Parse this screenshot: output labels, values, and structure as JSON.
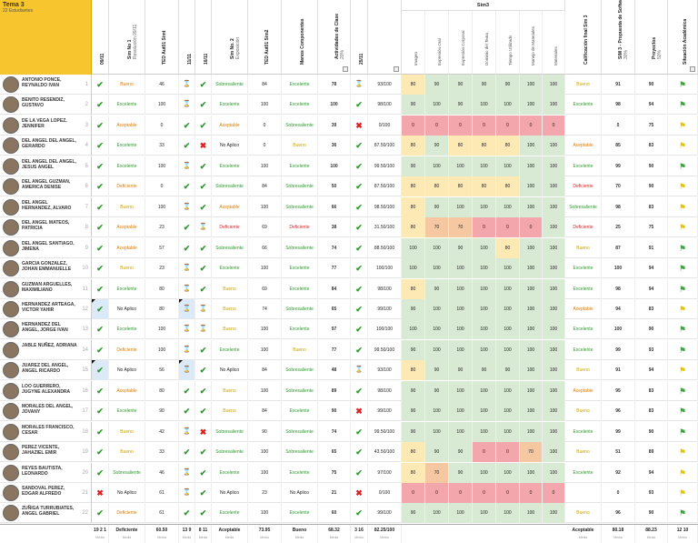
{
  "topic": {
    "title": "Tema 3",
    "count": "22 Estudiantes"
  },
  "headers": [
    {
      "k": "c1",
      "t": "09/11",
      "s": ""
    },
    {
      "k": "c2",
      "t": "Sim No 1",
      "s": "Resolución 09/11"
    },
    {
      "k": "c3",
      "t": "TED Aut01 Simt",
      "s": ""
    },
    {
      "k": "c4",
      "t": "11/11",
      "s": ""
    },
    {
      "k": "c5",
      "t": "16/11",
      "s": ""
    },
    {
      "k": "c6",
      "t": "Sim No. 2",
      "s": "Exposición"
    },
    {
      "k": "c7",
      "t": "TED Aut01 Sim2",
      "s": ""
    },
    {
      "k": "c8",
      "t": "Manos Componentes",
      "s": ""
    },
    {
      "k": "c9",
      "t": "Actividades de Clase",
      "s": "20%"
    },
    {
      "k": "c10",
      "t": "25/11",
      "s": ""
    },
    {
      "k": "c11",
      "t": "",
      "s": ""
    },
    {
      "k": "c12",
      "t": "Calificación final Sim 3",
      "s": ""
    },
    {
      "k": "c13",
      "t": "SIM 3 - Propuesta de Software",
      "s": "30%"
    },
    {
      "k": "c14",
      "t": "Proyectos",
      "s": "50%"
    },
    {
      "k": "c15",
      "t": "Situación Académica",
      "s": ""
    }
  ],
  "sim3": {
    "title": "Sim3",
    "cols": [
      "Imagen",
      "Expresión Oral",
      "Expresión Corporal",
      "Dominio del Tema",
      "Tiempo Utilizado",
      "Manejo de Materiales",
      "Materiales"
    ]
  },
  "rows": [
    {
      "n": "ANTONIO PONCE, REYNALDO IVAN",
      "i": "1",
      "a": "c",
      "b": "Bueno",
      "bc": "o",
      "c": "46",
      "d": "h",
      "e": "c",
      "f": "Sobresaliente",
      "fc": "g",
      "g": "84",
      "h": "Excelente",
      "hc": "g",
      "act": "78",
      "j": "h",
      "k": "93/100",
      "s": [
        "80",
        "90",
        "90",
        "90",
        "90",
        "100",
        "100"
      ],
      "sc": [
        "y",
        "g",
        "g",
        "g",
        "g",
        "g",
        "g"
      ],
      "cf": "Bueno",
      "cfc": "y",
      "sim": "91",
      "p": "90",
      "fl": "g"
    },
    {
      "n": "BENITO RESENDIZ, GUSTAVO",
      "i": "2",
      "a": "c",
      "b": "Excelente",
      "bc": "g",
      "c": "100",
      "d": "h",
      "e": "c",
      "f": "Excelente",
      "fc": "g",
      "g": "100",
      "h": "Excelente",
      "hc": "g",
      "act": "100",
      "j": "c",
      "k": "98/100",
      "s": [
        "90",
        "100",
        "90",
        "100",
        "100",
        "100",
        "100"
      ],
      "sc": [
        "g",
        "g",
        "g",
        "g",
        "g",
        "g",
        "g"
      ],
      "cf": "Excelente",
      "cfc": "g",
      "sim": "98",
      "p": "94",
      "fl": "g"
    },
    {
      "n": "DE LA VEGA LOPEZ, JENNIFER",
      "i": "3",
      "a": "c",
      "b": "Aceptable",
      "bc": "o",
      "c": "0",
      "d": "c",
      "e": "c",
      "f": "Aceptable",
      "fc": "o",
      "g": "0",
      "h": "Sobresaliente",
      "hc": "g",
      "act": "39",
      "j": "x",
      "k": "0/100",
      "s": [
        "0",
        "0",
        "0",
        "0",
        "0",
        "0",
        "0"
      ],
      "sc": [
        "r",
        "r",
        "r",
        "r",
        "r",
        "r",
        "r"
      ],
      "cf": "",
      "cfc": "",
      "sim": "0",
      "p": "75",
      "fl": "y"
    },
    {
      "n": "DEL ANGEL DEL ANGEL, GERARDO",
      "i": "4",
      "a": "c",
      "b": "Excelente",
      "bc": "g",
      "c": "33",
      "d": "c",
      "e": "x",
      "f": "No Aplico",
      "fc": "",
      "g": "0",
      "h": "Bueno",
      "hc": "y",
      "act": "36",
      "j": "c",
      "k": "87.50/100",
      "s": [
        "80",
        "90",
        "80",
        "80",
        "80",
        "100",
        "100"
      ],
      "sc": [
        "y",
        "g",
        "y",
        "y",
        "y",
        "g",
        "g"
      ],
      "cf": "Aceptable",
      "cfc": "o",
      "sim": "85",
      "p": "83",
      "fl": "y"
    },
    {
      "n": "DEL ANGEL DEL ANGEL, JESUS ANGEL",
      "i": "5",
      "a": "c",
      "b": "Excelente",
      "bc": "g",
      "c": "100",
      "d": "h",
      "e": "c",
      "f": "Excelente",
      "fc": "g",
      "g": "100",
      "h": "Excelente",
      "hc": "g",
      "act": "100",
      "j": "c",
      "k": "99.50/100",
      "s": [
        "90",
        "100",
        "100",
        "100",
        "100",
        "100",
        "100"
      ],
      "sc": [
        "g",
        "g",
        "g",
        "g",
        "g",
        "g",
        "g"
      ],
      "cf": "Excelente",
      "cfc": "g",
      "sim": "99",
      "p": "90",
      "fl": "g"
    },
    {
      "n": "DEL ANGEL GUZMAN, AMERICA DENISE",
      "i": "6",
      "a": "c",
      "b": "Deficiente",
      "bc": "o",
      "c": "0",
      "d": "c",
      "e": "c",
      "f": "Sobresaliente",
      "fc": "g",
      "g": "84",
      "h": "Sobresaliente",
      "hc": "g",
      "act": "50",
      "j": "c",
      "k": "87.50/100",
      "s": [
        "80",
        "80",
        "80",
        "80",
        "80",
        "100",
        "100"
      ],
      "sc": [
        "y",
        "y",
        "y",
        "y",
        "y",
        "g",
        "g"
      ],
      "cf": "Deficiente",
      "cfc": "r",
      "sim": "70",
      "p": "90",
      "fl": "y"
    },
    {
      "n": "DEL ANGEL HERNANDEZ, ALVARO",
      "i": "7",
      "a": "c",
      "b": "Bueno",
      "bc": "y",
      "c": "100",
      "d": "h",
      "e": "c",
      "f": "Aceptable",
      "fc": "o",
      "g": "100",
      "h": "Sobresaliente",
      "hc": "g",
      "act": "66",
      "j": "c",
      "k": "98.50/100",
      "s": [
        "80",
        "90",
        "100",
        "100",
        "100",
        "100",
        "100"
      ],
      "sc": [
        "y",
        "g",
        "g",
        "g",
        "g",
        "g",
        "g"
      ],
      "cf": "Sobresaliente",
      "cfc": "g",
      "sim": "98",
      "p": "83",
      "fl": "y"
    },
    {
      "n": "DEL ANGEL MATEOS, PATRICIA",
      "i": "8",
      "a": "c",
      "b": "Aceptable",
      "bc": "o",
      "c": "23",
      "d": "c",
      "e": "h",
      "f": "Deficiente",
      "fc": "r",
      "g": "69",
      "h": "Deficiente",
      "hc": "r",
      "act": "38",
      "j": "c",
      "k": "31.50/100",
      "s": [
        "80",
        "70",
        "70",
        "0",
        "0",
        "0",
        "100"
      ],
      "sc": [
        "y",
        "o",
        "o",
        "r",
        "r",
        "r",
        "g"
      ],
      "cf": "Deficiente",
      "cfc": "r",
      "sim": "25",
      "p": "75",
      "fl": "y"
    },
    {
      "n": "DEL ANGEL SANTIAGO, JIMENA",
      "i": "9",
      "a": "c",
      "b": "Aceptable",
      "bc": "o",
      "c": "57",
      "d": "c",
      "e": "c",
      "f": "Sobresaliente",
      "fc": "g",
      "g": "66",
      "h": "Sobresaliente",
      "hc": "g",
      "act": "74",
      "j": "c",
      "k": "88.50/100",
      "s": [
        "100",
        "100",
        "90",
        "100",
        "80",
        "100",
        "100"
      ],
      "sc": [
        "g",
        "g",
        "g",
        "g",
        "y",
        "g",
        "g"
      ],
      "cf": "Bueno",
      "cfc": "y",
      "sim": "87",
      "p": "91",
      "fl": "g"
    },
    {
      "n": "GARCIA GONZALEZ, JOHAN EMMANUELLE",
      "i": "10",
      "a": "c",
      "b": "Bueno",
      "bc": "y",
      "c": "23",
      "d": "h",
      "e": "c",
      "f": "Excelente",
      "fc": "g",
      "g": "100",
      "h": "Excelente",
      "hc": "g",
      "act": "77",
      "j": "c",
      "k": "100/100",
      "s": [
        "100",
        "100",
        "100",
        "100",
        "100",
        "100",
        "100"
      ],
      "sc": [
        "g",
        "g",
        "g",
        "g",
        "g",
        "g",
        "g"
      ],
      "cf": "Excelente",
      "cfc": "g",
      "sim": "100",
      "p": "94",
      "fl": "g"
    },
    {
      "n": "GUZMAN ARGUELLES, MAXIMILIANO",
      "i": "11",
      "a": "c",
      "b": "Excelente",
      "bc": "g",
      "c": "80",
      "d": "h",
      "e": "c",
      "f": "Bueno",
      "fc": "y",
      "g": "69",
      "h": "Excelente",
      "hc": "g",
      "act": "84",
      "j": "c",
      "k": "98/100",
      "s": [
        "80",
        "90",
        "100",
        "100",
        "100",
        "100",
        "100"
      ],
      "sc": [
        "y",
        "g",
        "g",
        "g",
        "g",
        "g",
        "g"
      ],
      "cf": "Excelente",
      "cfc": "g",
      "sim": "98",
      "p": "94",
      "fl": "g"
    },
    {
      "n": "HERNANDEZ ARTEAGA, VICTOR YAHIR",
      "i": "12",
      "a": "c",
      "b": "No Aplico",
      "bc": "",
      "c": "80",
      "d": "h",
      "e": "h",
      "f": "Bueno",
      "fc": "y",
      "g": "74",
      "h": "Sobresaliente",
      "hc": "g",
      "act": "65",
      "j": "c",
      "k": "99/100",
      "s": [
        "90",
        "100",
        "100",
        "100",
        "100",
        "100",
        "100"
      ],
      "sc": [
        "g",
        "g",
        "g",
        "g",
        "g",
        "g",
        "g"
      ],
      "cf": "Aceptable",
      "cfc": "o",
      "sim": "94",
      "p": "83",
      "fl": "y",
      "blue": true
    },
    {
      "n": "HERNANDEZ DEL ANGEL, JORGE IVAN",
      "i": "13",
      "a": "c",
      "b": "Excelente",
      "bc": "g",
      "c": "100",
      "d": "h",
      "e": "h",
      "f": "Bueno",
      "fc": "y",
      "g": "100",
      "h": "Excelente",
      "hc": "g",
      "act": "97",
      "j": "c",
      "k": "100/100",
      "s": [
        "100",
        "100",
        "100",
        "100",
        "100",
        "100",
        "100"
      ],
      "sc": [
        "g",
        "g",
        "g",
        "g",
        "g",
        "g",
        "g"
      ],
      "cf": "Excelente",
      "cfc": "g",
      "sim": "100",
      "p": "90",
      "fl": "g"
    },
    {
      "n": "JABLE NUÑEZ, ADRIANA",
      "i": "14",
      "a": "c",
      "b": "Deficiente",
      "bc": "o",
      "c": "100",
      "d": "h",
      "e": "c",
      "f": "Excelente",
      "fc": "g",
      "g": "100",
      "h": "Bueno",
      "hc": "y",
      "act": "77",
      "j": "c",
      "k": "99.50/100",
      "s": [
        "90",
        "100",
        "100",
        "100",
        "100",
        "100",
        "100"
      ],
      "sc": [
        "g",
        "g",
        "g",
        "g",
        "g",
        "g",
        "g"
      ],
      "cf": "Excelente",
      "cfc": "g",
      "sim": "99",
      "p": "93",
      "fl": "g"
    },
    {
      "n": "JUAREZ DEL ANGEL, ANGEL RICARDO",
      "i": "15",
      "a": "c",
      "b": "No Aplico",
      "bc": "",
      "c": "56",
      "d": "h",
      "e": "c",
      "f": "No Aplico",
      "fc": "",
      "g": "84",
      "h": "Sobresaliente",
      "hc": "g",
      "act": "48",
      "j": "h",
      "k": "93/100",
      "s": [
        "80",
        "90",
        "90",
        "90",
        "90",
        "100",
        "100"
      ],
      "sc": [
        "y",
        "g",
        "g",
        "g",
        "g",
        "g",
        "g"
      ],
      "cf": "Bueno",
      "cfc": "y",
      "sim": "91",
      "p": "94",
      "fl": "y",
      "blue": true
    },
    {
      "n": "LOO GUERRERO, JUGYNE ALEXANDRA",
      "i": "16",
      "a": "c",
      "b": "Aceptable",
      "bc": "o",
      "c": "80",
      "d": "c",
      "e": "c",
      "f": "Bueno",
      "fc": "y",
      "g": "100",
      "h": "Sobresaliente",
      "hc": "g",
      "act": "89",
      "j": "c",
      "k": "98/100",
      "s": [
        "90",
        "90",
        "100",
        "100",
        "100",
        "100",
        "100"
      ],
      "sc": [
        "g",
        "g",
        "g",
        "g",
        "g",
        "g",
        "g"
      ],
      "cf": "Aceptable",
      "cfc": "o",
      "sim": "95",
      "p": "83",
      "fl": "g"
    },
    {
      "n": "MORALES DEL ANGEL, JOVANY",
      "i": "17",
      "a": "c",
      "b": "Excelente",
      "bc": "g",
      "c": "90",
      "d": "c",
      "e": "c",
      "f": "Bueno",
      "fc": "y",
      "g": "84",
      "h": "Excelente",
      "hc": "g",
      "act": "90",
      "j": "x",
      "k": "99/100",
      "s": [
        "90",
        "100",
        "100",
        "100",
        "100",
        "100",
        "100"
      ],
      "sc": [
        "g",
        "g",
        "g",
        "g",
        "g",
        "g",
        "g"
      ],
      "cf": "Bueno",
      "cfc": "y",
      "sim": "96",
      "p": "83",
      "fl": "g"
    },
    {
      "n": "MORALES FRANCISCO, CESAR",
      "i": "18",
      "a": "c",
      "b": "Bueno",
      "bc": "y",
      "c": "42",
      "d": "h",
      "e": "x",
      "f": "Sobresaliente",
      "fc": "g",
      "g": "90",
      "h": "Sobresaliente",
      "hc": "g",
      "act": "74",
      "j": "c",
      "k": "99.50/100",
      "s": [
        "90",
        "100",
        "100",
        "100",
        "100",
        "100",
        "100"
      ],
      "sc": [
        "g",
        "g",
        "g",
        "g",
        "g",
        "g",
        "g"
      ],
      "cf": "Excelente",
      "cfc": "g",
      "sim": "99",
      "p": "90",
      "fl": "g"
    },
    {
      "n": "PEREZ VICENTE, JAHAZIEL EMIR",
      "i": "19",
      "a": "c",
      "b": "Bueno",
      "bc": "y",
      "c": "33",
      "d": "c",
      "e": "c",
      "f": "Sobresaliente",
      "fc": "g",
      "g": "100",
      "h": "Sobresaliente",
      "hc": "g",
      "act": "65",
      "j": "c",
      "k": "43.50/100",
      "s": [
        "80",
        "90",
        "90",
        "0",
        "0",
        "70",
        "100"
      ],
      "sc": [
        "y",
        "g",
        "g",
        "r",
        "r",
        "o",
        "g"
      ],
      "cf": "Bueno",
      "cfc": "y",
      "sim": "51",
      "p": "89",
      "fl": "y"
    },
    {
      "n": "REYES BAUTISTA, LEONARDO",
      "i": "20",
      "a": "c",
      "b": "Sobresaliente",
      "bc": "g",
      "c": "46",
      "d": "h",
      "e": "c",
      "f": "Excelente",
      "fc": "g",
      "g": "100",
      "h": "Excelente",
      "hc": "g",
      "act": "75",
      "j": "c",
      "k": "97/100",
      "s": [
        "80",
        "70",
        "90",
        "100",
        "100",
        "100",
        "100"
      ],
      "sc": [
        "y",
        "o",
        "g",
        "g",
        "g",
        "g",
        "g"
      ],
      "cf": "Excelente",
      "cfc": "g",
      "sim": "92",
      "p": "94",
      "fl": "y"
    },
    {
      "n": "SANDOVAL PEREZ, EDGAR ALFREDO",
      "i": "21",
      "a": "x",
      "b": "No Aplico",
      "bc": "",
      "c": "61",
      "d": "h",
      "e": "c",
      "f": "No Aplico",
      "fc": "",
      "g": "23",
      "h": "No Aplico",
      "hc": "",
      "act": "21",
      "j": "x",
      "k": "0/100",
      "s": [
        "0",
        "0",
        "0",
        "0",
        "0",
        "0",
        "0"
      ],
      "sc": [
        "r",
        "r",
        "r",
        "r",
        "r",
        "r",
        "r"
      ],
      "cf": "",
      "cfc": "",
      "sim": "0",
      "p": "93",
      "fl": "y"
    },
    {
      "n": "ZUÑIGA TURRUBIATES, ANGEL GABRIEL",
      "i": "22",
      "a": "c",
      "b": "Deficiente",
      "bc": "o",
      "c": "61",
      "d": "c",
      "e": "c",
      "f": "Excelente",
      "fc": "g",
      "g": "100",
      "h": "Excelente",
      "hc": "g",
      "act": "60",
      "j": "c",
      "k": "99/100",
      "s": [
        "90",
        "100",
        "100",
        "100",
        "100",
        "100",
        "100"
      ],
      "sc": [
        "g",
        "g",
        "g",
        "g",
        "g",
        "g",
        "g"
      ],
      "cf": "Bueno",
      "cfc": "y",
      "sim": "96",
      "p": "90",
      "fl": "g"
    }
  ],
  "footer": {
    "c1a": "19",
    "c1b": "2",
    "c1c": "1",
    "c2": "Deficiente",
    "c3": "60.50",
    "c4a": "13",
    "c4b": "9",
    "c5a": "8",
    "c5b": "11",
    "c6": "Aceptable",
    "c7": "73.95",
    "c8": "Bueno",
    "c9": "68.32",
    "c10a": "3",
    "c10b": "16",
    "k": "82.25/100",
    "cf": "Aceptable",
    "sim": "80.18",
    "p": "88.23",
    "fa": "12",
    "fb": "10",
    "meta": "Media"
  }
}
